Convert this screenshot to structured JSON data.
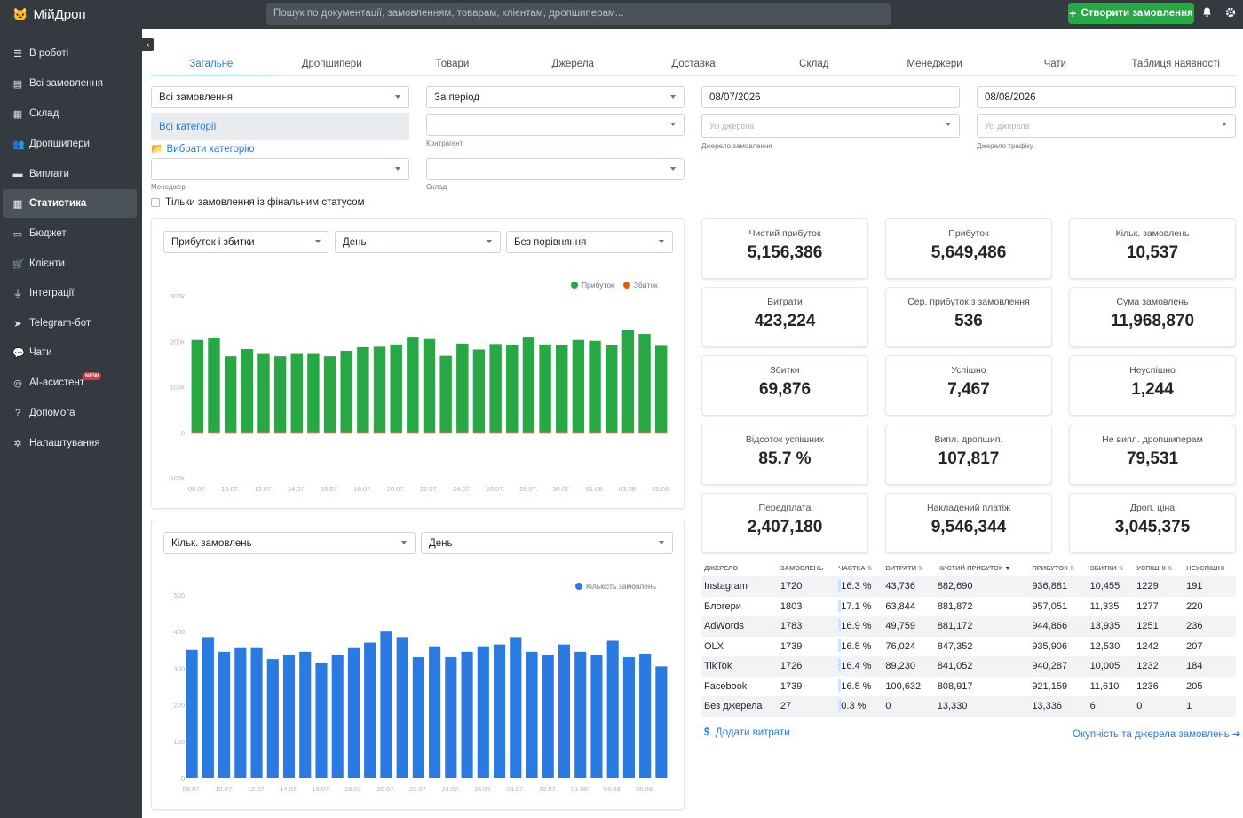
{
  "app": {
    "title": "МійДроп",
    "search_placeholder": "Пошук по документації, замовленням, товарам, клієнтам, дропшиперам...",
    "create_button": "Створити замовлення"
  },
  "sidebar": {
    "items": [
      {
        "label": "В роботі",
        "icon": "list-icon"
      },
      {
        "label": "Всі замовлення",
        "icon": "table-icon"
      },
      {
        "label": "Склад",
        "icon": "boxes-icon"
      },
      {
        "label": "Дропшипери",
        "icon": "users-icon"
      },
      {
        "label": "Виплати",
        "icon": "money-icon"
      },
      {
        "label": "Статистика",
        "icon": "chart-icon"
      },
      {
        "label": "Бюджет",
        "icon": "wallet-icon"
      },
      {
        "label": "Клієнти",
        "icon": "cart-icon"
      },
      {
        "label": "Інтеграції",
        "icon": "plug-icon"
      },
      {
        "label": "Telegram-бот",
        "icon": "telegram-icon"
      },
      {
        "label": "Чати",
        "icon": "chat-icon"
      },
      {
        "label": "AI-асистент",
        "icon": "ai-icon",
        "badge": "NEW"
      },
      {
        "label": "Допомога",
        "icon": "help-icon"
      },
      {
        "label": "Налаштування",
        "icon": "gear-icon"
      }
    ]
  },
  "tabs": [
    "Загальне",
    "Дропшипери",
    "Товари",
    "Джерела",
    "Доставка",
    "Склад",
    "Менеджери",
    "Чати",
    "Таблиця наявності"
  ],
  "filters": {
    "orders": "Всі замовлення",
    "period": "За період",
    "date_from": "08/07/2026",
    "date_to": "08/08/2026",
    "categories": "Всі категорії",
    "choose_category": "Вибрати категорію",
    "counterparty_label": "Контрагент",
    "order_source_placeholder": "Усі джерела",
    "order_source_label": "Джерело замовлення",
    "traffic_source_placeholder": "Усі джерела",
    "traffic_source_label": "Джерело трафіку",
    "manager_label": "Менеджер",
    "warehouse_label": "Склад",
    "final_status_only": "Тільки замовлення із фінальним статусом"
  },
  "chart1_controls": {
    "metric": "Прибуток і збитки",
    "granularity": "День",
    "compare": "Без порівняння"
  },
  "chart2_controls": {
    "metric": "Кільк. замовлень",
    "granularity": "День"
  },
  "colors": {
    "profit": "#28a745",
    "loss": "#e8590c",
    "orders": "#2a7ae2",
    "sidebar": "#343a40",
    "accent": "#2a7ae2"
  },
  "chart_data": [
    {
      "type": "bar",
      "title": "",
      "series": [
        {
          "name": "Прибуток",
          "values": [
            203000,
            208000,
            167000,
            183000,
            172000,
            167000,
            172000,
            172000,
            167000,
            179000,
            187000,
            188000,
            193000,
            210000,
            205000,
            168000,
            195000,
            182000,
            194000,
            192000,
            210000,
            193000,
            191000,
            203000,
            201000,
            191000,
            224000,
            216000,
            190000
          ]
        },
        {
          "name": "Збиток",
          "values": [
            -3000,
            -3000,
            -3000,
            -3000,
            -3000,
            -3000,
            -3000,
            -3000,
            -3000,
            -3000,
            -3000,
            -3000,
            -3000,
            -3000,
            -3000,
            -3000,
            -3000,
            -3000,
            -3000,
            -3000,
            -3000,
            -3000,
            -3000,
            -3000,
            -3000,
            -3000,
            -3000,
            -3000,
            -3000
          ]
        }
      ],
      "x_tick_labels": [
        "08.07.",
        "10.07.",
        "12.07.",
        "14.07.",
        "16.07.",
        "18.07.",
        "20.07.",
        "22.07.",
        "24.07.",
        "26.07.",
        "28.07.",
        "30.07.",
        "01.08.",
        "03.08.",
        "05.08."
      ],
      "y_tick_labels": [
        "300k",
        "200k",
        "100k",
        "0",
        "-100k"
      ],
      "ylim": [
        -100000,
        300000
      ],
      "legend": "top-right"
    },
    {
      "type": "bar",
      "title": "",
      "series": [
        {
          "name": "Кількість замовлень",
          "values": [
            350,
            385,
            345,
            355,
            355,
            325,
            335,
            345,
            315,
            335,
            355,
            370,
            400,
            385,
            330,
            360,
            330,
            345,
            360,
            365,
            385,
            345,
            335,
            365,
            345,
            335,
            375,
            330,
            340,
            305
          ]
        }
      ],
      "x_tick_labels": [
        "08.07.",
        "10.07.",
        "12.07.",
        "14.07.",
        "16.07.",
        "18.07.",
        "20.07.",
        "22.07.",
        "24.07.",
        "26.07.",
        "28.07.",
        "30.07.",
        "01.08.",
        "03.08.",
        "05.08."
      ],
      "y_tick_labels": [
        "500",
        "400",
        "300",
        "200",
        "100",
        "0"
      ],
      "ylim": [
        0,
        500
      ],
      "legend": "top-right"
    }
  ],
  "stats": [
    {
      "title": "Чистий прибуток",
      "value": "5,156,386"
    },
    {
      "title": "Прибуток",
      "value": "5,649,486"
    },
    {
      "title": "Кільк. замовлень",
      "value": "10,537"
    },
    {
      "title": "Витрати",
      "value": "423,224"
    },
    {
      "title": "Сер. прибуток з замовлення",
      "value": "536"
    },
    {
      "title": "Сума замовлень",
      "value": "11,968,870"
    },
    {
      "title": "Збитки",
      "value": "69,876"
    },
    {
      "title": "Успішно",
      "value": "7,467"
    },
    {
      "title": "Неуспішно",
      "value": "1,244"
    },
    {
      "title": "Відсоток успішних",
      "value": "85.7 %"
    },
    {
      "title": "Випл. дропшип.",
      "value": "107,817"
    },
    {
      "title": "Не випл. дропшиперам",
      "value": "79,531"
    },
    {
      "title": "Передплата",
      "value": "2,407,180"
    },
    {
      "title": "Накладений платіж",
      "value": "9,546,344"
    },
    {
      "title": "Дроп. ціна",
      "value": "3,045,375"
    }
  ],
  "sources_table": {
    "headers": [
      "ДЖЕРЕЛО",
      "ЗАМОВЛЕНЬ",
      "ЧАСТКА",
      "ВИТРАТИ",
      "ЧИСТИЙ ПРИБУТОК",
      "ПРИБУТОК",
      "ЗБИТКИ",
      "УСПІШНІ",
      "НЕУСПІШНІ"
    ],
    "rows": [
      [
        "Instagram",
        "1720",
        "16.3 %",
        "43,736",
        "882,690",
        "936,881",
        "10,455",
        "1229",
        "191"
      ],
      [
        "Блогери",
        "1803",
        "17.1 %",
        "63,844",
        "881,872",
        "957,051",
        "11,335",
        "1277",
        "220"
      ],
      [
        "AdWords",
        "1783",
        "16.9 %",
        "49,759",
        "881,172",
        "944,866",
        "13,935",
        "1251",
        "236"
      ],
      [
        "OLX",
        "1739",
        "16.5 %",
        "76,024",
        "847,352",
        "935,906",
        "12,530",
        "1242",
        "207"
      ],
      [
        "TikTok",
        "1726",
        "16.4 %",
        "89,230",
        "841,052",
        "940,287",
        "10,005",
        "1232",
        "184"
      ],
      [
        "Facebook",
        "1739",
        "16.5 %",
        "100,632",
        "808,917",
        "921,159",
        "11,610",
        "1236",
        "205"
      ],
      [
        "Без джерела",
        "27",
        "0.3 %",
        "0",
        "13,330",
        "13,336",
        "6",
        "0",
        "1"
      ]
    ]
  },
  "footer_links": {
    "add_expenses": "Додати витрати",
    "payback": "Окупність та джерела замовлень"
  }
}
